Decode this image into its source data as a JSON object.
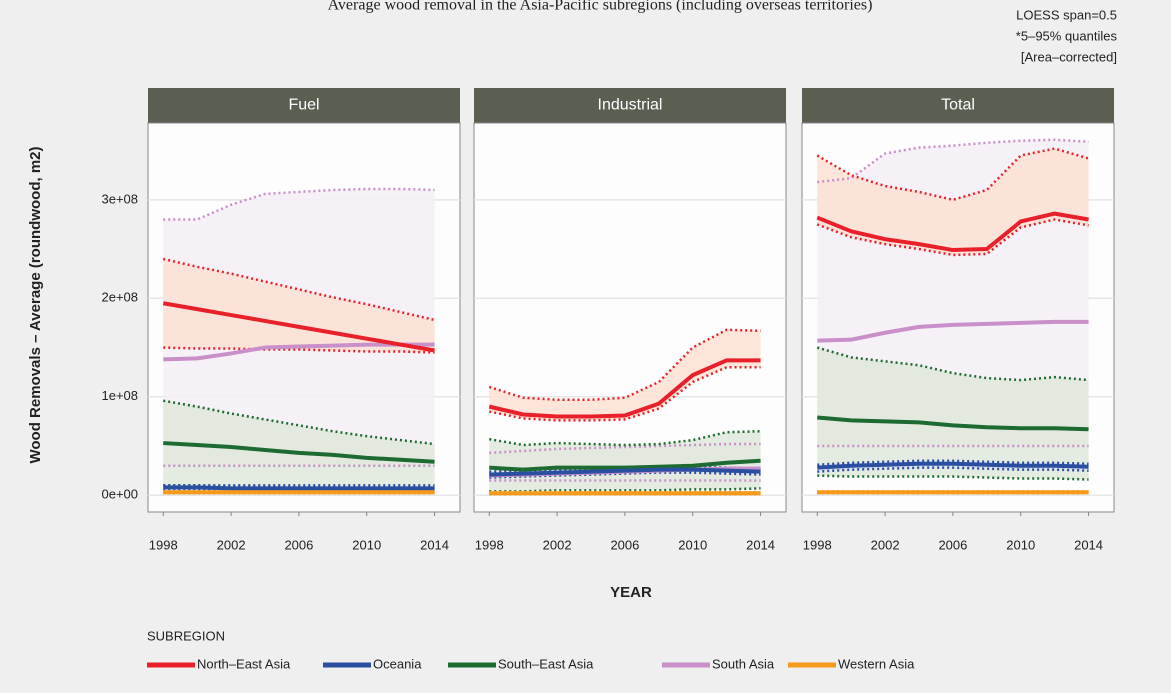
{
  "title": "Average wood removal in the Asia-Pacific subregions (including overseas territories)",
  "notes": [
    "LOESS span=0.5",
    "*5–95% quantiles",
    "[Area–corrected]"
  ],
  "ylabel": "Wood Removals – Average (roundwood, m2)",
  "xlabel": "YEAR",
  "legend_title": "SUBREGION",
  "chart_data": [
    {
      "type": "line",
      "title": "Fuel",
      "x": [
        1998,
        2000,
        2002,
        2004,
        2006,
        2008,
        2010,
        2012,
        2014
      ],
      "xlim": [
        1997.1,
        2015.5
      ],
      "xticks": [
        1998,
        2002,
        2006,
        2010,
        2014
      ],
      "ylim": [
        -17000000.0,
        378000000.0
      ],
      "yticks": [
        {
          "value": 0,
          "label": "0e+00"
        },
        {
          "value": 100000000.0,
          "label": "1e+08"
        },
        {
          "value": 200000000.0,
          "label": "2e+08"
        },
        {
          "value": 300000000.0,
          "label": "3e+08"
        }
      ],
      "grid": true,
      "series": [
        {
          "name": "North–East Asia",
          "color": "#e8202a",
          "fill": "#fde0d3",
          "values": [
            195000000.0,
            189000000.0,
            183000000.0,
            177000000.0,
            171000000.0,
            165000000.0,
            159000000.0,
            153000000.0,
            147000000.0
          ],
          "upper": [
            240000000.0,
            232000000.0,
            225000000.0,
            217000000.0,
            209000000.0,
            201000000.0,
            194000000.0,
            186000000.0,
            178000000.0
          ],
          "lower": [
            150000000.0,
            149000000.0,
            149000000.0,
            148000000.0,
            148000000.0,
            147000000.0,
            146000000.0,
            146000000.0,
            145000000.0
          ]
        },
        {
          "name": "Oceania",
          "color": "#2a4ea0",
          "fill": "#dfe4f0",
          "values": [
            8000000.0,
            8000000.0,
            7000000.0,
            7000000.0,
            7000000.0,
            7000000.0,
            7000000.0,
            7000000.0,
            7000000.0
          ],
          "upper": [
            10000000.0,
            10000000.0,
            10000000.0,
            10000000.0,
            10000000.0,
            10000000.0,
            10000000.0,
            10000000.0,
            10000000.0
          ],
          "lower": [
            5000000.0,
            5000000.0,
            5000000.0,
            5000000.0,
            5000000.0,
            5000000.0,
            5000000.0,
            5000000.0,
            5000000.0
          ]
        },
        {
          "name": "South–East Asia",
          "color": "#1d6b30",
          "fill": "#dfe8db",
          "values": [
            53000000.0,
            51000000.0,
            49000000.0,
            46000000.0,
            43000000.0,
            41000000.0,
            38000000.0,
            36000000.0,
            34000000.0
          ],
          "upper": [
            96000000.0,
            90000000.0,
            83000000.0,
            77000000.0,
            71000000.0,
            65000000.0,
            60000000.0,
            56000000.0,
            52000000.0
          ],
          "lower": [
            10000000.0,
            10000000.0,
            9000000.0,
            9000000.0,
            8000000.0,
            8000000.0,
            7000000.0,
            7000000.0,
            7000000.0
          ]
        },
        {
          "name": "South Asia",
          "color": "#c98fc9",
          "fill": "#f5eef6",
          "values": [
            138000000.0,
            139000000.0,
            144000000.0,
            150000000.0,
            151000000.0,
            152000000.0,
            153000000.0,
            153000000.0,
            153000000.0
          ],
          "upper": [
            280000000.0,
            280000000.0,
            295000000.0,
            306000000.0,
            308000000.0,
            310000000.0,
            311000000.0,
            311000000.0,
            310000000.0
          ],
          "lower": [
            30000000.0,
            30000000.0,
            30000000.0,
            30000000.0,
            30000000.0,
            30000000.0,
            30000000.0,
            30000000.0,
            30000000.0
          ]
        },
        {
          "name": "Western Asia",
          "color": "#f59a1a",
          "fill": "#fbe8cc",
          "values": [
            3000000.0,
            3000000.0,
            3000000.0,
            3000000.0,
            3000000.0,
            3000000.0,
            3000000.0,
            3000000.0,
            3000000.0
          ],
          "upper": [
            4000000.0,
            4000000.0,
            4000000.0,
            4000000.0,
            4000000.0,
            4000000.0,
            4000000.0,
            4000000.0,
            4000000.0
          ],
          "lower": [
            2000000.0,
            2000000.0,
            2000000.0,
            2000000.0,
            2000000.0,
            2000000.0,
            2000000.0,
            2000000.0,
            2000000.0
          ]
        }
      ]
    },
    {
      "type": "line",
      "title": "Industrial",
      "x": [
        1998,
        2000,
        2002,
        2004,
        2006,
        2008,
        2010,
        2012,
        2014
      ],
      "xlim": [
        1997.1,
        2015.5
      ],
      "xticks": [
        1998,
        2002,
        2006,
        2010,
        2014
      ],
      "ylim": [
        -17000000.0,
        378000000.0
      ],
      "yticks": [
        0,
        100000000.0,
        200000000.0,
        300000000.0
      ],
      "grid": true,
      "series": [
        {
          "name": "North–East Asia",
          "color": "#e8202a",
          "fill": "#fde0d3",
          "values": [
            90000000.0,
            82000000.0,
            80000000.0,
            80000000.0,
            81000000.0,
            93000000.0,
            122000000.0,
            137000000.0,
            137000000.0
          ],
          "upper": [
            110000000.0,
            99000000.0,
            97000000.0,
            97000000.0,
            99000000.0,
            115000000.0,
            150000000.0,
            168000000.0,
            167000000.0
          ],
          "lower": [
            85000000.0,
            78000000.0,
            76000000.0,
            76000000.0,
            77000000.0,
            88000000.0,
            115000000.0,
            130000000.0,
            130000000.0
          ]
        },
        {
          "name": "Oceania",
          "color": "#2a4ea0",
          "fill": "#dfe4f0",
          "values": [
            21000000.0,
            22000000.0,
            23000000.0,
            24000000.0,
            25000000.0,
            26000000.0,
            26000000.0,
            25000000.0,
            24000000.0
          ],
          "upper": [
            24000000.0,
            25000000.0,
            26000000.0,
            27000000.0,
            28000000.0,
            29000000.0,
            29000000.0,
            28000000.0,
            27000000.0
          ],
          "lower": [
            18000000.0,
            19000000.0,
            20000000.0,
            21000000.0,
            22000000.0,
            23000000.0,
            23000000.0,
            22000000.0,
            21000000.0
          ]
        },
        {
          "name": "South–East Asia",
          "color": "#1d6b30",
          "fill": "#dfe8db",
          "values": [
            28000000.0,
            26000000.0,
            28000000.0,
            28000000.0,
            28000000.0,
            29000000.0,
            30000000.0,
            33000000.0,
            35000000.0
          ],
          "upper": [
            57000000.0,
            51000000.0,
            53000000.0,
            52000000.0,
            51000000.0,
            52000000.0,
            56000000.0,
            64000000.0,
            65000000.0
          ],
          "lower": [
            4000000.0,
            4000000.0,
            5000000.0,
            5000000.0,
            5000000.0,
            5000000.0,
            6000000.0,
            6000000.0,
            7000000.0
          ]
        },
        {
          "name": "South Asia",
          "color": "#c98fc9",
          "fill": "#f5eef6",
          "values": [
            20000000.0,
            21000000.0,
            22000000.0,
            23000000.0,
            24000000.0,
            25000000.0,
            26000000.0,
            27000000.0,
            27000000.0
          ],
          "upper": [
            43000000.0,
            45000000.0,
            47000000.0,
            48000000.0,
            49000000.0,
            50000000.0,
            51000000.0,
            52000000.0,
            52000000.0
          ],
          "lower": [
            15000000.0,
            15000000.0,
            15000000.0,
            15000000.0,
            15000000.0,
            15000000.0,
            15000000.0,
            15000000.0,
            15000000.0
          ]
        },
        {
          "name": "Western Asia",
          "color": "#f59a1a",
          "fill": "#fbe8cc",
          "values": [
            2000000.0,
            2000000.0,
            2000000.0,
            2000000.0,
            2000000.0,
            2000000.0,
            2000000.0,
            2000000.0,
            2000000.0
          ],
          "upper": [
            3000000.0,
            3000000.0,
            3000000.0,
            3000000.0,
            3000000.0,
            3000000.0,
            3000000.0,
            3000000.0,
            3000000.0
          ],
          "lower": [
            1000000.0,
            1000000.0,
            1000000.0,
            1000000.0,
            1000000.0,
            1000000.0,
            1000000.0,
            1000000.0,
            1000000.0
          ]
        }
      ]
    },
    {
      "type": "line",
      "title": "Total",
      "x": [
        1998,
        2000,
        2002,
        2004,
        2006,
        2008,
        2010,
        2012,
        2014
      ],
      "xlim": [
        1997.1,
        2015.5
      ],
      "xticks": [
        1998,
        2002,
        2006,
        2010,
        2014
      ],
      "ylim": [
        -17000000.0,
        378000000.0
      ],
      "yticks": [
        0,
        100000000.0,
        200000000.0,
        300000000.0
      ],
      "grid": true,
      "series": [
        {
          "name": "North–East Asia",
          "color": "#e8202a",
          "fill": "#fde0d3",
          "values": [
            282000000.0,
            268000000.0,
            260000000.0,
            255000000.0,
            249000000.0,
            250000000.0,
            278000000.0,
            286000000.0,
            280000000.0
          ],
          "upper": [
            345000000.0,
            325000000.0,
            314000000.0,
            308000000.0,
            300000000.0,
            310000000.0,
            345000000.0,
            352000000.0,
            342000000.0
          ],
          "lower": [
            275000000.0,
            262000000.0,
            255000000.0,
            250000000.0,
            244000000.0,
            245000000.0,
            272000000.0,
            280000000.0,
            274000000.0
          ]
        },
        {
          "name": "Oceania",
          "color": "#2a4ea0",
          "fill": "#dfe4f0",
          "values": [
            28000000.0,
            30000000.0,
            31000000.0,
            32000000.0,
            32000000.0,
            31000000.0,
            30000000.0,
            30000000.0,
            29000000.0
          ],
          "upper": [
            31000000.0,
            33000000.0,
            34000000.0,
            35000000.0,
            35000000.0,
            34000000.0,
            33000000.0,
            33000000.0,
            32000000.0
          ],
          "lower": [
            24000000.0,
            26000000.0,
            27000000.0,
            28000000.0,
            28000000.0,
            27000000.0,
            26000000.0,
            26000000.0,
            25000000.0
          ]
        },
        {
          "name": "South–East Asia",
          "color": "#1d6b30",
          "fill": "#dfe8db",
          "values": [
            79000000.0,
            76000000.0,
            75000000.0,
            74000000.0,
            71000000.0,
            69000000.0,
            68000000.0,
            68000000.0,
            67000000.0
          ],
          "upper": [
            150000000.0,
            140000000.0,
            136000000.0,
            132000000.0,
            124000000.0,
            119000000.0,
            117000000.0,
            120000000.0,
            117000000.0
          ],
          "lower": [
            20000000.0,
            19000000.0,
            19000000.0,
            19000000.0,
            19000000.0,
            18000000.0,
            17000000.0,
            17000000.0,
            16000000.0
          ]
        },
        {
          "name": "South Asia",
          "color": "#c98fc9",
          "fill": "#f5eef6",
          "values": [
            157000000.0,
            158000000.0,
            165000000.0,
            171000000.0,
            173000000.0,
            174000000.0,
            175000000.0,
            176000000.0,
            176000000.0
          ],
          "upper": [
            318000000.0,
            322000000.0,
            347000000.0,
            353000000.0,
            355000000.0,
            358000000.0,
            360000000.0,
            361000000.0,
            359000000.0
          ],
          "lower": [
            50000000.0,
            50000000.0,
            50000000.0,
            50000000.0,
            50000000.0,
            50000000.0,
            50000000.0,
            50000000.0,
            50000000.0
          ]
        },
        {
          "name": "Western Asia",
          "color": "#f59a1a",
          "fill": "#fbe8cc",
          "values": [
            3000000.0,
            3000000.0,
            3000000.0,
            3000000.0,
            3000000.0,
            3000000.0,
            3000000.0,
            3000000.0,
            3000000.0
          ],
          "upper": [
            4000000.0,
            4000000.0,
            4000000.0,
            4000000.0,
            4000000.0,
            4000000.0,
            4000000.0,
            4000000.0,
            4000000.0
          ],
          "lower": [
            2000000.0,
            2000000.0,
            2000000.0,
            2000000.0,
            2000000.0,
            2000000.0,
            2000000.0,
            2000000.0,
            2000000.0
          ]
        }
      ]
    }
  ]
}
